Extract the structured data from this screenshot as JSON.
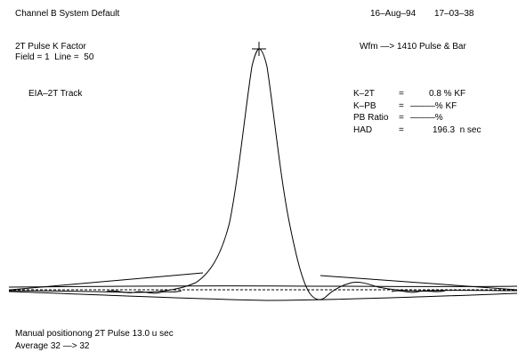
{
  "header": {
    "title": "Channel B System Default",
    "date": "16–Aug–94",
    "time": "17–03–38"
  },
  "measurement": {
    "name": "2T Pulse K Factor",
    "field_line": "Field = 1  Line =  50"
  },
  "waveform": {
    "label": "Wfm —> 1410 Pulse & Bar"
  },
  "track": {
    "label": "EIA–2T Track"
  },
  "readouts": [
    {
      "label": "K–2T",
      "eq": "=",
      "value": "0.8 % KF"
    },
    {
      "label": "K–PB",
      "eq": "=",
      "value": "–––––% KF"
    },
    {
      "label": "PB Ratio",
      "eq": "=",
      "value": "–––––%"
    },
    {
      "label": "HAD",
      "eq": "=",
      "value": "196.3  n sec"
    }
  ],
  "footer": {
    "manual": "Manual positionong 2T Pulse 13.0 u sec",
    "average": "Average 32 —> 32"
  },
  "colors": {
    "trace": "#000000",
    "background": "#ffffff"
  }
}
